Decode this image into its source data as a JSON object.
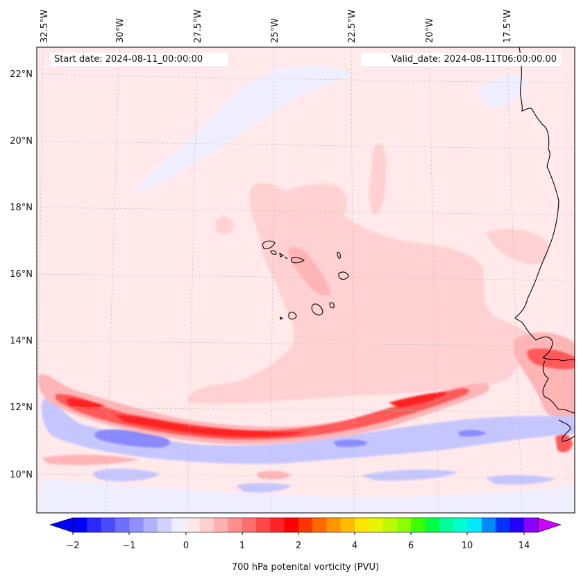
{
  "header": {
    "start_label": "Start date: 2024-08-11_00:00:00",
    "valid_label": "Valid_date: 2024-08-11T06:00:00.00"
  },
  "map": {
    "longitude_labels": [
      "32.5°W",
      "30°W",
      "27.5°W",
      "25°W",
      "22.5°W",
      "20°W",
      "17.5°W"
    ],
    "latitude_labels": [
      "22°N",
      "20°N",
      "18°N",
      "16°N",
      "14°N",
      "12°N",
      "10°N"
    ],
    "colors": {
      "background": "#ffe9ea",
      "weak_positive": "#ffd1d3",
      "moderate_positive": "#ffb4b6",
      "strong_positive": "#ff5a5a",
      "max_positive": "#ff2020",
      "weak_negative": "#eeeeff",
      "moderate_negative": "#c6c6ff",
      "strong_negative": "#8a8aff",
      "coastline": "#000000"
    }
  },
  "colorbar": {
    "label": "700 hPa potenital vorticity (PVU)",
    "ticks": [
      "−2",
      "−1",
      "0",
      "1",
      "2",
      "4",
      "6",
      "10",
      "14"
    ],
    "colors": [
      "#0000ff",
      "#2a2aff",
      "#4a4aff",
      "#6e6eff",
      "#9090ff",
      "#b2b2ff",
      "#d2d2ff",
      "#eeeeff",
      "#ffe8e8",
      "#ffcfcf",
      "#ffb0b0",
      "#ff8f8f",
      "#ff6d6d",
      "#ff4848",
      "#ff2424",
      "#ff0000",
      "#ff3600",
      "#ff6a00",
      "#ff9500",
      "#ffbd00",
      "#ffe600",
      "#e8f500",
      "#bcfa00",
      "#8cff00",
      "#3cff00",
      "#00ff44",
      "#00ff9a",
      "#00ffd0",
      "#00e8ff",
      "#0088ff",
      "#0033ff",
      "#2200ff",
      "#8a00ff"
    ]
  }
}
